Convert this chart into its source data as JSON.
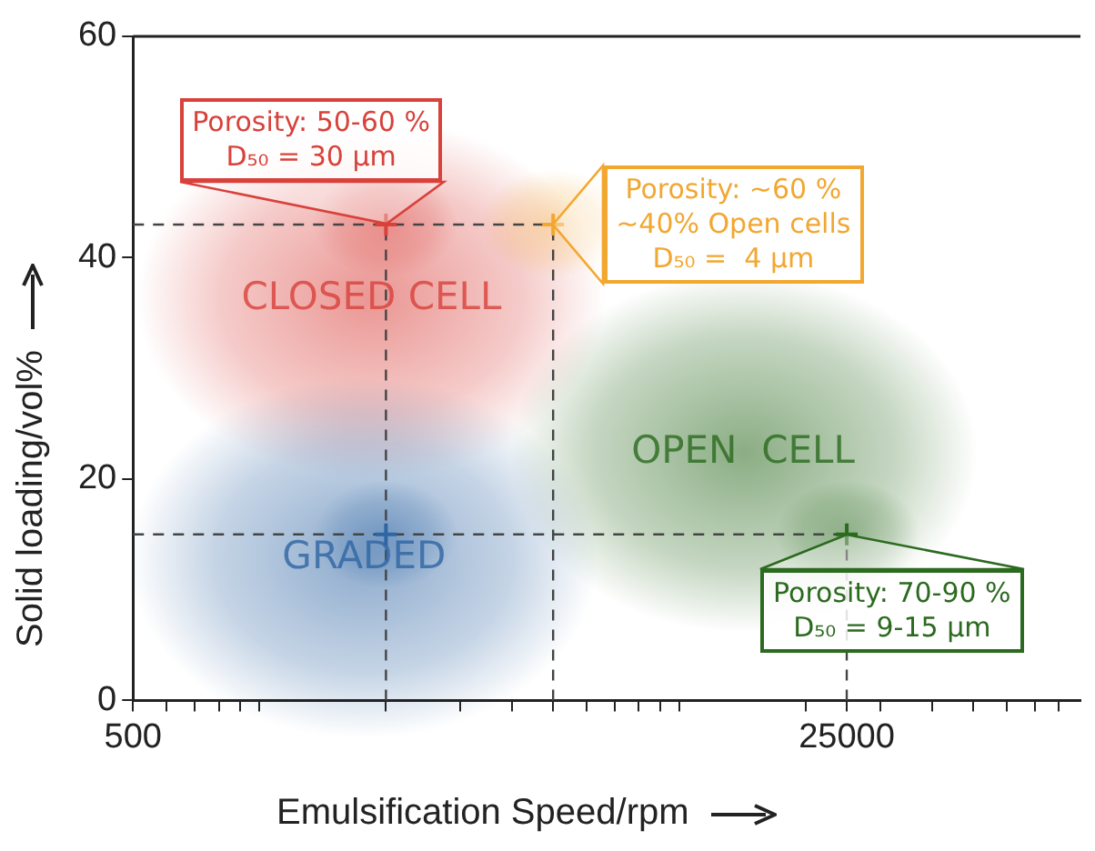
{
  "chart_data": {
    "type": "scatter",
    "xlabel": "Emulsification Speed/rpm",
    "ylabel": "Solid loading/vol%",
    "log": "x",
    "xlim": [
      500,
      90000
    ],
    "ylim": [
      0,
      60
    ],
    "xticks": [
      500,
      {
        "value": 600,
        "label": null
      },
      {
        "value": 700,
        "label": null
      },
      {
        "value": 800,
        "label": null
      },
      {
        "value": 900,
        "label": null
      },
      {
        "value": 1000,
        "label": null
      },
      {
        "value": 2000,
        "label": null
      },
      {
        "value": 3000,
        "label": null
      },
      {
        "value": 4000,
        "label": null
      },
      {
        "value": 5000,
        "label": null
      },
      {
        "value": 6000,
        "label": null
      },
      {
        "value": 7000,
        "label": null
      },
      {
        "value": 8000,
        "label": null
      },
      {
        "value": 9000,
        "label": null
      },
      {
        "value": 10000,
        "label": null
      },
      {
        "value": 20000,
        "label": null
      },
      25000,
      {
        "value": 30000,
        "label": null
      },
      {
        "value": 40000,
        "label": null
      },
      {
        "value": 50000,
        "label": null
      },
      {
        "value": 60000,
        "label": null
      },
      {
        "value": 70000,
        "label": null
      },
      {
        "value": 80000,
        "label": null
      }
    ],
    "yticks": [
      0,
      20,
      40,
      60
    ],
    "grid": false,
    "legend": false,
    "marker": "cross",
    "series": [
      {
        "color": "#d9413b",
        "x": [
          2000
        ],
        "values": [
          43
        ]
      },
      {
        "color": "#f2a730",
        "x": [
          5000
        ],
        "values": [
          43
        ]
      },
      {
        "color": "#2f65a3",
        "x": [
          2000
        ],
        "values": [
          15
        ]
      },
      {
        "color": "#2b6a1f",
        "x": [
          25000
        ],
        "values": [
          15
        ]
      }
    ],
    "ref_lines": [
      {
        "axis": "y",
        "value": 43,
        "line_style": "dashed",
        "color": "#444444"
      },
      {
        "axis": "y",
        "value": 15,
        "line_style": "dashed",
        "color": "#444444"
      },
      {
        "axis": "x",
        "value": 2000,
        "line_style": "dashed",
        "color": "#444444"
      },
      {
        "axis": "x",
        "value": 5000,
        "line_style": "dashed",
        "color": "#444444"
      },
      {
        "axis": "x",
        "value": 25000,
        "line_style": "dashed",
        "color": "#444444"
      }
    ],
    "annotations": [
      {
        "text": "Porosity: 50-60 %\nD₅₀ = 30 μm",
        "x": 2000,
        "y": 43
      },
      {
        "text": "Porosity: ~60 %\n~40% Open cells\nD₅₀ =  4 μm",
        "x": 5000,
        "y": 43
      },
      {
        "text": "Porosity: 70-90 %\nD₅₀ = 9-15 μm",
        "x": 25000,
        "y": 15
      },
      "CLOSED CELL",
      "OPEN  CELL",
      "GRADED"
    ]
  }
}
